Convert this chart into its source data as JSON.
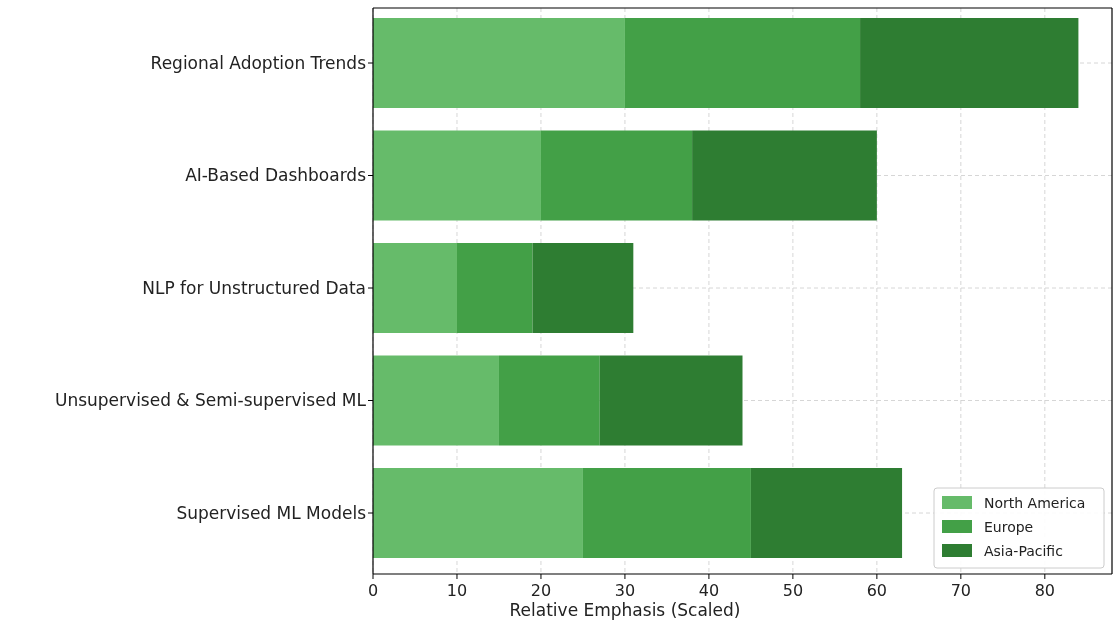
{
  "chart_data": {
    "type": "bar",
    "orientation": "horizontal",
    "stacked": true,
    "xlabel": "Relative Emphasis (Scaled)",
    "categories": [
      "Regional Adoption Trends",
      "AI-Based Dashboards",
      "NLP for Unstructured Data",
      "Unsupervised & Semi-supervised ML",
      "Supervised ML Models"
    ],
    "series": [
      {
        "name": "North America",
        "color": "#66bb6a",
        "values": [
          30,
          20,
          10,
          15,
          25
        ]
      },
      {
        "name": "Europe",
        "color": "#43a047",
        "values": [
          28,
          18,
          9,
          12,
          20
        ]
      },
      {
        "name": "Asia-Pacific",
        "color": "#2e7d32",
        "values": [
          26,
          22,
          12,
          17,
          18
        ]
      }
    ],
    "xlim": [
      0,
      88
    ],
    "xticks": [
      0,
      10,
      20,
      30,
      40,
      50,
      60,
      70,
      80
    ],
    "grid": true,
    "legend": "bottom right"
  }
}
